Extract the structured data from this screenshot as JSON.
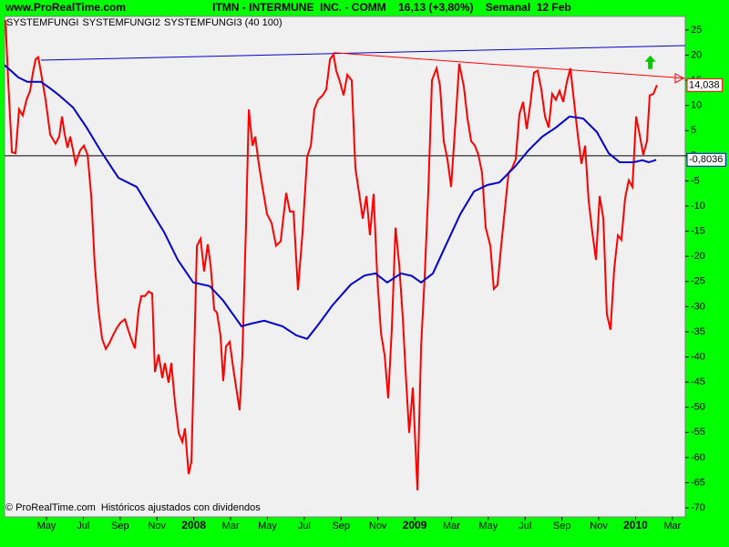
{
  "site": "www.ProRealTime.com",
  "footer": "© ProRealTime.com  Históricos ajustados con dividendos",
  "chart_data": {
    "type": "line",
    "title": "ITMN - INTERMUNE  INC. - COMM    16,13 (+3,80%)    Semanal  12 Feb",
    "xlim": [
      1.72,
      38.7
    ],
    "ylim": [
      -71.8,
      27.7
    ],
    "xticks": [
      {
        "value": 4,
        "label": "May"
      },
      {
        "value": 6,
        "label": "Jul"
      },
      {
        "value": 8,
        "label": "Sep"
      },
      {
        "value": 10,
        "label": "Nov"
      },
      {
        "value": 12,
        "label": "2008"
      },
      {
        "value": 14,
        "label": "Mar"
      },
      {
        "value": 16,
        "label": "May"
      },
      {
        "value": 18,
        "label": "Jul"
      },
      {
        "value": 20,
        "label": "Sep"
      },
      {
        "value": 22,
        "label": "Nov"
      },
      {
        "value": 24,
        "label": "2009"
      },
      {
        "value": 26,
        "label": "Mar"
      },
      {
        "value": 28,
        "label": "May"
      },
      {
        "value": 30,
        "label": "Jul"
      },
      {
        "value": 32,
        "label": "Sep"
      },
      {
        "value": 34,
        "label": "Nov"
      },
      {
        "value": 36,
        "label": "2010"
      },
      {
        "value": 38,
        "label": "Mar"
      }
    ],
    "yticks": [
      25,
      20,
      15,
      10,
      5,
      0,
      -5,
      -10,
      -15,
      -20,
      -25,
      -30,
      -35,
      -40,
      -45,
      -50,
      -55,
      -60,
      -65,
      -70
    ],
    "reference_lines": [
      {
        "name": "SYSTEMFUNGI",
        "value": 0,
        "color": "#000000"
      }
    ],
    "series": [
      {
        "name": "SYSTEMFUNGI2",
        "color": "#ff0000",
        "last_value_label": "14,038",
        "x": [
          1.77,
          1.92,
          2.12,
          2.32,
          2.51,
          2.71,
          2.91,
          3.11,
          3.26,
          3.41,
          3.55,
          3.7,
          3.95,
          4.2,
          4.49,
          4.69,
          4.84,
          4.99,
          5.14,
          5.29,
          5.44,
          5.58,
          5.83,
          6.03,
          6.23,
          6.43,
          6.62,
          6.82,
          7.02,
          7.22,
          7.42,
          7.61,
          7.81,
          8.01,
          8.26,
          8.41,
          8.6,
          8.8,
          9.0,
          9.15,
          9.35,
          9.54,
          9.74,
          9.89,
          10.09,
          10.29,
          10.43,
          10.63,
          10.78,
          10.98,
          11.18,
          11.38,
          11.52,
          11.72,
          11.87,
          12.02,
          12.17,
          12.37,
          12.56,
          12.76,
          12.91,
          13.11,
          13.26,
          13.45,
          13.6,
          13.75,
          13.95,
          14.15,
          14.49,
          14.64,
          14.84,
          14.99,
          15.19,
          15.34,
          15.53,
          15.73,
          15.98,
          16.23,
          16.47,
          16.72,
          17.02,
          17.22,
          17.42,
          17.66,
          17.91,
          18.16,
          18.36,
          18.55,
          18.75,
          19.0,
          19.2,
          19.4,
          19.59,
          19.74,
          19.94,
          20.14,
          20.34,
          20.58,
          20.78,
          20.98,
          21.18,
          21.38,
          21.57,
          21.77,
          21.97,
          22.17,
          22.37,
          22.56,
          22.76,
          22.96,
          23.16,
          23.36,
          23.5,
          23.7,
          23.9,
          24.15,
          24.35,
          24.54,
          24.74,
          24.94,
          25.19,
          25.38,
          25.58,
          25.78,
          25.98,
          26.23,
          26.42,
          26.67,
          26.87,
          27.07,
          27.27,
          27.46,
          27.66,
          27.86,
          28.11,
          28.3,
          28.5,
          28.7,
          28.9,
          29.1,
          29.29,
          29.49,
          29.69,
          29.89,
          30.09,
          30.28,
          30.48,
          30.68,
          30.88,
          31.08,
          31.28,
          31.47,
          31.67,
          31.87,
          32.07,
          32.27,
          32.46,
          32.66,
          32.86,
          33.06,
          33.26,
          33.45,
          33.65,
          33.85,
          34.05,
          34.25,
          34.44,
          34.64,
          34.84,
          35.04,
          35.23,
          35.43,
          35.63,
          35.83,
          36.03,
          36.22,
          36.42,
          36.62,
          36.77,
          36.97,
          37.16
        ],
        "values": [
          27.0,
          14.7,
          0.7,
          0.5,
          9.2,
          8.0,
          11.1,
          12.9,
          16.5,
          19.2,
          19.6,
          16.5,
          11.1,
          4.2,
          2.4,
          3.8,
          7.8,
          4.2,
          1.6,
          3.8,
          1.1,
          -1.6,
          1.1,
          2.0,
          0.2,
          -8.0,
          -21.6,
          -30.6,
          -36.4,
          -38.4,
          -37.2,
          -35.7,
          -34.3,
          -33.2,
          -32.5,
          -34.3,
          -36.4,
          -38.3,
          -30.6,
          -27.9,
          -27.9,
          -27.0,
          -27.4,
          -43.0,
          -39.5,
          -44.2,
          -41.2,
          -45.1,
          -41.2,
          -49.1,
          -55.1,
          -56.9,
          -54.2,
          -63.3,
          -60.9,
          -39.7,
          -17.9,
          -16.5,
          -23.0,
          -17.6,
          -21.6,
          -30.6,
          -31.2,
          -35.7,
          -44.8,
          -37.9,
          -37.0,
          -42.4,
          -50.6,
          -39.7,
          -13.4,
          9.2,
          2.0,
          3.8,
          -1.6,
          -6.2,
          -11.6,
          -13.4,
          -17.9,
          -17.0,
          -7.4,
          -11.1,
          -11.1,
          -26.7,
          -15.2,
          -0.2,
          2.0,
          9.2,
          11.1,
          12.0,
          13.2,
          19.2,
          20.1,
          16.9,
          14.7,
          12.0,
          16.1,
          15.0,
          -2.5,
          -7.4,
          -12.5,
          -8.0,
          -15.8,
          -7.6,
          -24.3,
          -35.2,
          -39.7,
          -48.2,
          -34.3,
          -14.3,
          -21.6,
          -32.5,
          -42.4,
          -55.1,
          -46.1,
          -66.5,
          -37.9,
          -24.3,
          -7.1,
          15.0,
          17.4,
          13.8,
          2.9,
          -0.7,
          -6.2,
          7.4,
          18.3,
          13.8,
          7.4,
          2.9,
          2.0,
          0.2,
          -3.4,
          -14.3,
          -17.9,
          -26.5,
          -25.7,
          -17.9,
          -10.7,
          -3.4,
          -2.5,
          -0.7,
          8.3,
          10.7,
          5.3,
          10.2,
          16.5,
          16.9,
          13.2,
          7.8,
          5.6,
          12.3,
          11.1,
          12.9,
          10.7,
          14.7,
          17.4,
          10.7,
          4.2,
          -1.6,
          2.0,
          -8.9,
          -15.2,
          -20.7,
          -8.0,
          -12.5,
          -31.5,
          -34.6,
          -22.5,
          -15.8,
          -16.7,
          -8.5,
          -4.9,
          -6.2,
          7.8,
          4.2,
          0.2,
          2.9,
          12.0,
          12.3,
          14.038
        ]
      },
      {
        "name": "SYSTEMFUNGI3 (40 100)",
        "color": "#0000cc",
        "last_value_label": "-0,8036",
        "x": [
          1.72,
          2.07,
          2.46,
          2.96,
          3.7,
          4.2,
          4.69,
          5.44,
          6.18,
          6.92,
          7.91,
          8.9,
          9.64,
          10.39,
          11.13,
          11.97,
          12.86,
          13.6,
          14.59,
          15.09,
          15.83,
          16.82,
          17.57,
          18.16,
          18.8,
          19.54,
          20.53,
          21.28,
          21.87,
          22.51,
          23.26,
          23.85,
          24.35,
          24.99,
          25.63,
          26.48,
          27.22,
          27.96,
          28.6,
          29.44,
          30.19,
          30.93,
          31.67,
          32.41,
          33.16,
          33.9,
          34.54,
          35.14,
          35.88,
          36.37,
          36.72,
          37.12
        ],
        "values": [
          18.0,
          16.9,
          15.6,
          14.7,
          14.7,
          13.4,
          12.0,
          9.6,
          5.6,
          1.1,
          -4.4,
          -6.2,
          -10.7,
          -15.2,
          -20.7,
          -25.2,
          -25.9,
          -28.8,
          -33.9,
          -33.4,
          -32.8,
          -33.9,
          -35.7,
          -36.4,
          -33.4,
          -29.7,
          -25.6,
          -23.8,
          -23.4,
          -25.2,
          -23.4,
          -23.9,
          -25.2,
          -23.4,
          -18.3,
          -11.6,
          -7.1,
          -5.8,
          -5.3,
          -2.2,
          1.1,
          3.8,
          5.6,
          7.8,
          7.4,
          4.7,
          0.5,
          -1.3,
          -1.3,
          -0.9,
          -1.3,
          -0.8036
        ]
      }
    ],
    "trend_lines": [
      {
        "color": "#0000cc",
        "x": [
          3.7,
          38.7
        ],
        "y": [
          19.0,
          21.9
        ]
      },
      {
        "color": "#ff0000",
        "x": [
          19.59,
          38.7
        ],
        "y": [
          20.5,
          15.4
        ]
      }
    ],
    "markers": [
      {
        "color": "#00cc00",
        "x": 36.8,
        "y": 18.5
      }
    ]
  }
}
